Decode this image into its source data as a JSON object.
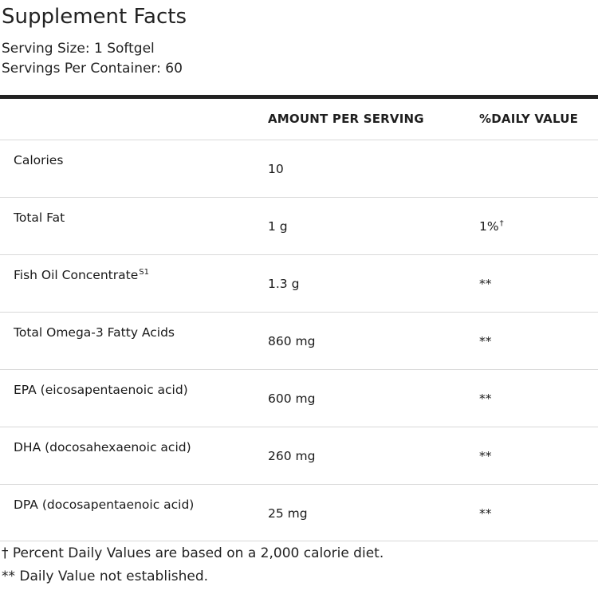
{
  "title": "Supplement Facts",
  "serving_size": "Serving Size: 1 Softgel",
  "servings_per_container": "Servings Per Container: 60",
  "headers": {
    "amount": "AMOUNT PER SERVING",
    "daily_value": "%DAILY VALUE"
  },
  "rows": [
    {
      "name": "Calories",
      "name_sup": "",
      "amount": "10",
      "daily_value": "",
      "dv_sup": ""
    },
    {
      "name": "Total Fat",
      "name_sup": "",
      "amount": "1 g",
      "daily_value": "1%",
      "dv_sup": "†"
    },
    {
      "name": "Fish Oil Concentrate",
      "name_sup": "S1",
      "amount": "1.3 g",
      "daily_value": "**",
      "dv_sup": ""
    },
    {
      "name": "Total Omega-3 Fatty Acids",
      "name_sup": "",
      "amount": "860 mg",
      "daily_value": "**",
      "dv_sup": ""
    },
    {
      "name": "EPA (eicosapentaenoic acid)",
      "name_sup": "",
      "amount": "600 mg",
      "daily_value": "**",
      "dv_sup": ""
    },
    {
      "name": "DHA (docosahexaenoic acid)",
      "name_sup": "",
      "amount": "260 mg",
      "daily_value": "**",
      "dv_sup": ""
    },
    {
      "name": "DPA (docosapentaenoic acid)",
      "name_sup": "",
      "amount": "25 mg",
      "daily_value": "**",
      "dv_sup": ""
    }
  ],
  "footnotes": {
    "percent": "† Percent Daily Values are based on a 2,000 calorie diet.",
    "not_established": "** Daily Value not established."
  }
}
